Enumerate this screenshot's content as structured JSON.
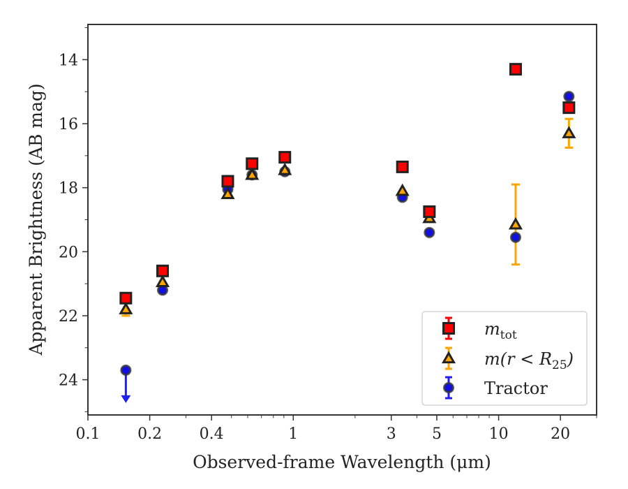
{
  "chart_data": {
    "type": "scatter",
    "title": "",
    "xlabel": "Observed-frame Wavelength (μm)",
    "ylabel": "Apparent Brightness (AB mag)",
    "x_scale": "log",
    "xlim": [
      0.1,
      30
    ],
    "ylim": [
      25.1,
      12.9
    ],
    "y_inverted": true,
    "grid": false,
    "legend_position": "bottom-right",
    "x_ticks": [
      {
        "value": 0.1,
        "label": "0.1"
      },
      {
        "value": 0.2,
        "label": "0.2"
      },
      {
        "value": 0.4,
        "label": "0.4"
      },
      {
        "value": 1,
        "label": "1"
      },
      {
        "value": 3,
        "label": "3"
      },
      {
        "value": 5,
        "label": "5"
      },
      {
        "value": 10,
        "label": "10"
      },
      {
        "value": 20,
        "label": "20"
      }
    ],
    "y_ticks": [
      {
        "value": 14,
        "label": "14"
      },
      {
        "value": 16,
        "label": "16"
      },
      {
        "value": 18,
        "label": "18"
      },
      {
        "value": 20,
        "label": "20"
      },
      {
        "value": 22,
        "label": "22"
      },
      {
        "value": 24,
        "label": "24"
      }
    ],
    "series": [
      {
        "name": "m_tot",
        "marker": "square",
        "color": "#ff0000",
        "edge_color": "#222222",
        "points": [
          {
            "x": 0.153,
            "y": 21.45
          },
          {
            "x": 0.231,
            "y": 20.6
          },
          {
            "x": 0.48,
            "y": 17.8
          },
          {
            "x": 0.63,
            "y": 17.25
          },
          {
            "x": 0.91,
            "y": 17.05
          },
          {
            "x": 3.4,
            "y": 17.35
          },
          {
            "x": 4.6,
            "y": 18.75
          },
          {
            "x": 12.1,
            "y": 14.3
          },
          {
            "x": 22.0,
            "y": 15.5
          }
        ]
      },
      {
        "name": "m(r<R25)",
        "marker": "triangle",
        "color": "#ffa500",
        "edge_color": "#222222",
        "errorbar_color": "#ffa500",
        "points": [
          {
            "x": 0.153,
            "y": 21.8,
            "err": 0.2
          },
          {
            "x": 0.231,
            "y": 20.95
          },
          {
            "x": 0.48,
            "y": 18.2
          },
          {
            "x": 0.63,
            "y": 17.6
          },
          {
            "x": 0.91,
            "y": 17.45
          },
          {
            "x": 3.4,
            "y": 18.1
          },
          {
            "x": 4.6,
            "y": 18.95
          },
          {
            "x": 12.1,
            "y": 19.15,
            "err": 1.25
          },
          {
            "x": 22.0,
            "y": 16.3,
            "err": 0.45
          }
        ]
      },
      {
        "name": "Tractor",
        "marker": "circle",
        "color": "#1010e6",
        "edge_color": "#333333",
        "errorbar_color": "#2020ee",
        "points": [
          {
            "x": 0.153,
            "y": 23.7,
            "upper_limit": true
          },
          {
            "x": 0.231,
            "y": 21.2
          },
          {
            "x": 0.48,
            "y": 18.05
          },
          {
            "x": 0.63,
            "y": 17.6
          },
          {
            "x": 0.91,
            "y": 17.5
          },
          {
            "x": 3.4,
            "y": 18.3
          },
          {
            "x": 4.6,
            "y": 19.4
          },
          {
            "x": 12.1,
            "y": 19.55
          },
          {
            "x": 22.0,
            "y": 15.15
          }
        ]
      }
    ],
    "legend": [
      {
        "label_main": "m",
        "label_sub": "tot",
        "label_rest": "",
        "marker": "square"
      },
      {
        "label_main": "m(r < R",
        "label_sub": "25",
        "label_rest": ")",
        "marker": "triangle"
      },
      {
        "label_main": "Tractor",
        "label_sub": "",
        "label_rest": "",
        "marker": "circle"
      }
    ]
  }
}
